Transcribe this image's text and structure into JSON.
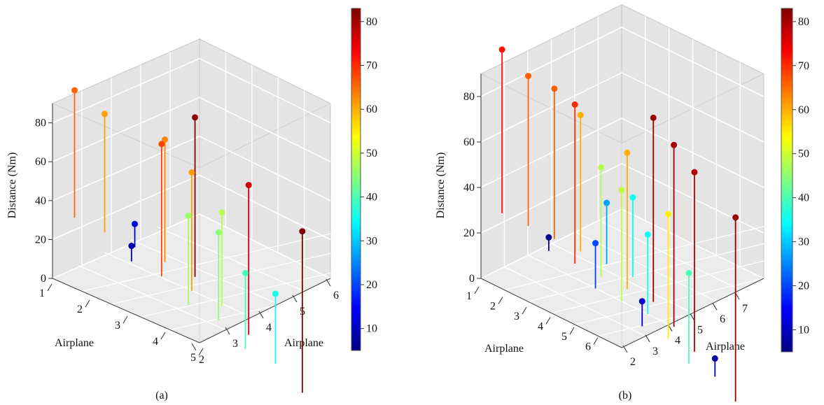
{
  "colorbar_colors": [
    "#00007f",
    "#0000ff",
    "#0080ff",
    "#00ffff",
    "#80ff80",
    "#ffff00",
    "#ff8000",
    "#ff0000",
    "#7f0000"
  ],
  "chart_data": [
    {
      "type": "scatter",
      "subtype": "3d-stem",
      "caption": "(a)",
      "zlabel": "Distance (Nm)",
      "xlabel": "Airplane",
      "ylabel": "Airplane",
      "x_ticks": [
        "1",
        "2",
        "3",
        "4",
        "5"
      ],
      "y_ticks": [
        "2",
        "3",
        "4",
        "5",
        "6"
      ],
      "z_ticks": [
        "0",
        "20",
        "40",
        "60",
        "80"
      ],
      "zlim": [
        0,
        90
      ],
      "colorbar": {
        "min": 5,
        "max": 83,
        "ticks": [
          "10",
          "20",
          "30",
          "40",
          "50",
          "60",
          "70",
          "80"
        ]
      },
      "points": [
        {
          "x": 1,
          "y": 2,
          "z": 65.5
        },
        {
          "x": 1,
          "y": 3,
          "z": 61
        },
        {
          "x": 1,
          "y": 4,
          "z": 12
        },
        {
          "x": 1,
          "y": 5,
          "z": 63
        },
        {
          "x": 1,
          "y": 6,
          "z": 82
        },
        {
          "x": 2,
          "y": 3,
          "z": 8
        },
        {
          "x": 2,
          "y": 4,
          "z": 68
        },
        {
          "x": 2,
          "y": 5,
          "z": 61
        },
        {
          "x": 2,
          "y": 6,
          "z": 48
        },
        {
          "x": 3,
          "y": 4,
          "z": 46
        },
        {
          "x": 3,
          "y": 5,
          "z": 45
        },
        {
          "x": 3,
          "y": 6,
          "z": 77
        },
        {
          "x": 4,
          "y": 5,
          "z": 39
        },
        {
          "x": 4,
          "y": 6,
          "z": 36
        },
        {
          "x": 5,
          "y": 6,
          "z": 83
        }
      ]
    },
    {
      "type": "scatter",
      "subtype": "3d-stem",
      "caption": "(b)",
      "zlabel": "Distance (Nm)",
      "xlabel": "Airplane",
      "ylabel": "Airplane",
      "x_ticks": [
        "1",
        "2",
        "3",
        "4",
        "5",
        "6"
      ],
      "y_ticks": [
        "2",
        "3",
        "4",
        "5",
        "6",
        "7"
      ],
      "z_ticks": [
        "0",
        "20",
        "40",
        "60",
        "80"
      ],
      "zlim": [
        0,
        90
      ],
      "colorbar": {
        "min": 5,
        "max": 83,
        "ticks": [
          "10",
          "20",
          "30",
          "40",
          "50",
          "60",
          "70",
          "80"
        ]
      },
      "points": [
        {
          "x": 1,
          "y": 2,
          "z": 72
        },
        {
          "x": 1,
          "y": 3,
          "z": 66
        },
        {
          "x": 1,
          "y": 4,
          "z": 66
        },
        {
          "x": 1,
          "y": 5,
          "z": 60
        },
        {
          "x": 1,
          "y": 6,
          "z": 27
        },
        {
          "x": 1,
          "y": 7,
          "z": 35
        },
        {
          "x": 2,
          "y": 3,
          "z": 6
        },
        {
          "x": 2,
          "y": 4,
          "z": 70
        },
        {
          "x": 2,
          "y": 5,
          "z": 48
        },
        {
          "x": 2,
          "y": 6,
          "z": 60
        },
        {
          "x": 2,
          "y": 7,
          "z": 81
        },
        {
          "x": 3,
          "y": 4,
          "z": 20
        },
        {
          "x": 3,
          "y": 5,
          "z": 49
        },
        {
          "x": 3,
          "y": 6,
          "z": 35
        },
        {
          "x": 3,
          "y": 7,
          "z": 80
        },
        {
          "x": 4,
          "y": 5,
          "z": 11
        },
        {
          "x": 4,
          "y": 6,
          "z": 55
        },
        {
          "x": 4,
          "y": 7,
          "z": 79
        },
        {
          "x": 5,
          "y": 6,
          "z": 40
        },
        {
          "x": 5,
          "y": 7,
          "z": 8
        },
        {
          "x": 6,
          "y": 7,
          "z": 81
        }
      ]
    }
  ]
}
